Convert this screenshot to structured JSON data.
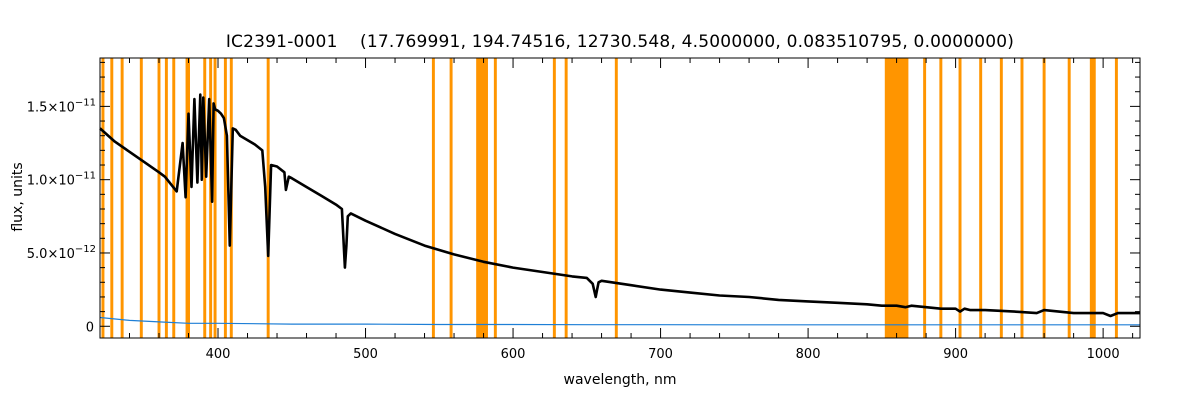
{
  "chart_data": {
    "type": "line",
    "title": "IC2391-0001    (17.769991, 194.74516, 12730.548, 4.5000000, 0.083510795, 0.0000000)",
    "xlabel": "wavelength, nm",
    "ylabel": "flux, units",
    "xlim": [
      320,
      1025
    ],
    "ylim": [
      -8e-13,
      1.83e-11
    ],
    "x_ticks": [
      {
        "value": 400,
        "label": "400"
      },
      {
        "value": 500,
        "label": "500"
      },
      {
        "value": 600,
        "label": "600"
      },
      {
        "value": 700,
        "label": "700"
      },
      {
        "value": 800,
        "label": "800"
      },
      {
        "value": 900,
        "label": "900"
      },
      {
        "value": 1000,
        "label": "1000"
      }
    ],
    "y_ticks": [
      {
        "value": 0,
        "mantissa": "0",
        "exponent": ""
      },
      {
        "value": 5e-12,
        "mantissa": "5.0×10",
        "exponent": "−12"
      },
      {
        "value": 1e-11,
        "mantissa": "1.0×10",
        "exponent": "−11"
      },
      {
        "value": 1.5e-11,
        "mantissa": "1.5×10",
        "exponent": "−11"
      }
    ],
    "masked_bands_nm": [
      [
        321,
        323
      ],
      [
        327,
        329
      ],
      [
        334,
        336
      ],
      [
        347,
        349
      ],
      [
        359,
        361
      ],
      [
        364,
        366
      ],
      [
        369,
        371
      ],
      [
        378,
        381
      ],
      [
        390,
        392
      ],
      [
        394,
        396
      ],
      [
        397,
        399
      ],
      [
        404,
        406
      ],
      [
        408,
        410
      ],
      [
        433,
        435
      ],
      [
        545,
        547
      ],
      [
        557,
        559
      ],
      [
        575,
        583
      ],
      [
        587,
        589
      ],
      [
        627,
        629
      ],
      [
        635,
        637
      ],
      [
        669,
        671
      ],
      [
        852,
        868
      ],
      [
        878,
        880
      ],
      [
        889,
        891
      ],
      [
        902,
        904
      ],
      [
        916,
        918
      ],
      [
        930,
        932
      ],
      [
        944,
        946
      ],
      [
        959,
        961
      ],
      [
        976,
        978
      ],
      [
        991,
        995
      ],
      [
        1008,
        1010
      ]
    ],
    "series": [
      {
        "color": "#000000",
        "x": [
          320,
          330,
          340,
          350,
          360,
          364,
          368,
          372,
          376,
          378,
          380,
          382,
          384,
          386,
          388,
          389,
          390,
          392,
          394,
          396,
          397,
          398,
          400,
          402,
          404,
          406,
          408,
          410,
          412,
          415,
          420,
          425,
          430,
          432,
          434,
          436,
          440,
          445,
          446,
          448,
          450,
          460,
          470,
          480,
          484,
          486,
          487,
          488,
          490,
          500,
          520,
          540,
          560,
          580,
          600,
          620,
          640,
          650,
          654,
          656,
          657,
          658,
          660,
          680,
          700,
          720,
          740,
          760,
          780,
          800,
          820,
          840,
          850,
          860,
          866,
          870,
          880,
          890,
          900,
          903,
          906,
          910,
          920,
          940,
          955,
          960,
          970,
          980,
          990,
          1000,
          1005,
          1010,
          1025
        ],
        "y": [
          1.35e-11,
          1.26e-11,
          1.19e-11,
          1.12e-11,
          1.05e-11,
          1.02e-11,
          9.7e-12,
          9.2e-12,
          1.25e-11,
          8.8e-12,
          1.45e-11,
          9.5e-12,
          1.55e-11,
          9.8e-12,
          1.58e-11,
          1e-11,
          1.56e-11,
          1.02e-11,
          1.55e-11,
          8.5e-12,
          1.52e-11,
          1.48e-11,
          1.47e-11,
          1.45e-11,
          1.42e-11,
          1.3e-11,
          5.5e-12,
          1.35e-11,
          1.34e-11,
          1.3e-11,
          1.27e-11,
          1.24e-11,
          1.2e-11,
          9.5e-12,
          4.8e-12,
          1.1e-11,
          1.09e-11,
          1.05e-11,
          9.3e-12,
          1.02e-11,
          1.01e-11,
          9.5e-12,
          8.9e-12,
          8.3e-12,
          8e-12,
          4e-12,
          5.5e-12,
          7.5e-12,
          7.7e-12,
          7.2e-12,
          6.3e-12,
          5.5e-12,
          4.9e-12,
          4.4e-12,
          4e-12,
          3.7e-12,
          3.4e-12,
          3.3e-12,
          2.9e-12,
          2e-12,
          2.5e-12,
          3e-12,
          3.1e-12,
          2.8e-12,
          2.5e-12,
          2.3e-12,
          2.1e-12,
          2e-12,
          1.8e-12,
          1.7e-12,
          1.6e-12,
          1.5e-12,
          1.4e-12,
          1.4e-12,
          1.3e-12,
          1.4e-12,
          1.3e-12,
          1.2e-12,
          1.2e-12,
          1e-12,
          1.2e-12,
          1.1e-12,
          1.1e-12,
          1e-12,
          9e-13,
          1.1e-12,
          1e-12,
          9e-13,
          9e-13,
          9e-13,
          7e-13,
          9e-13,
          9e-13
        ]
      },
      {
        "color": "#1e7fd6",
        "x": [
          320,
          340,
          360,
          380,
          400,
          450,
          500,
          550,
          600,
          650,
          700,
          750,
          800,
          850,
          900,
          950,
          1000,
          1025
        ],
        "y": [
          6e-13,
          4e-13,
          3e-13,
          2e-13,
          2e-13,
          1.5e-13,
          1.5e-13,
          1.2e-13,
          1.2e-13,
          1.1e-13,
          1.1e-13,
          1e-13,
          1e-13,
          1e-13,
          1e-13,
          1e-13,
          1e-13,
          1e-13
        ]
      }
    ]
  }
}
